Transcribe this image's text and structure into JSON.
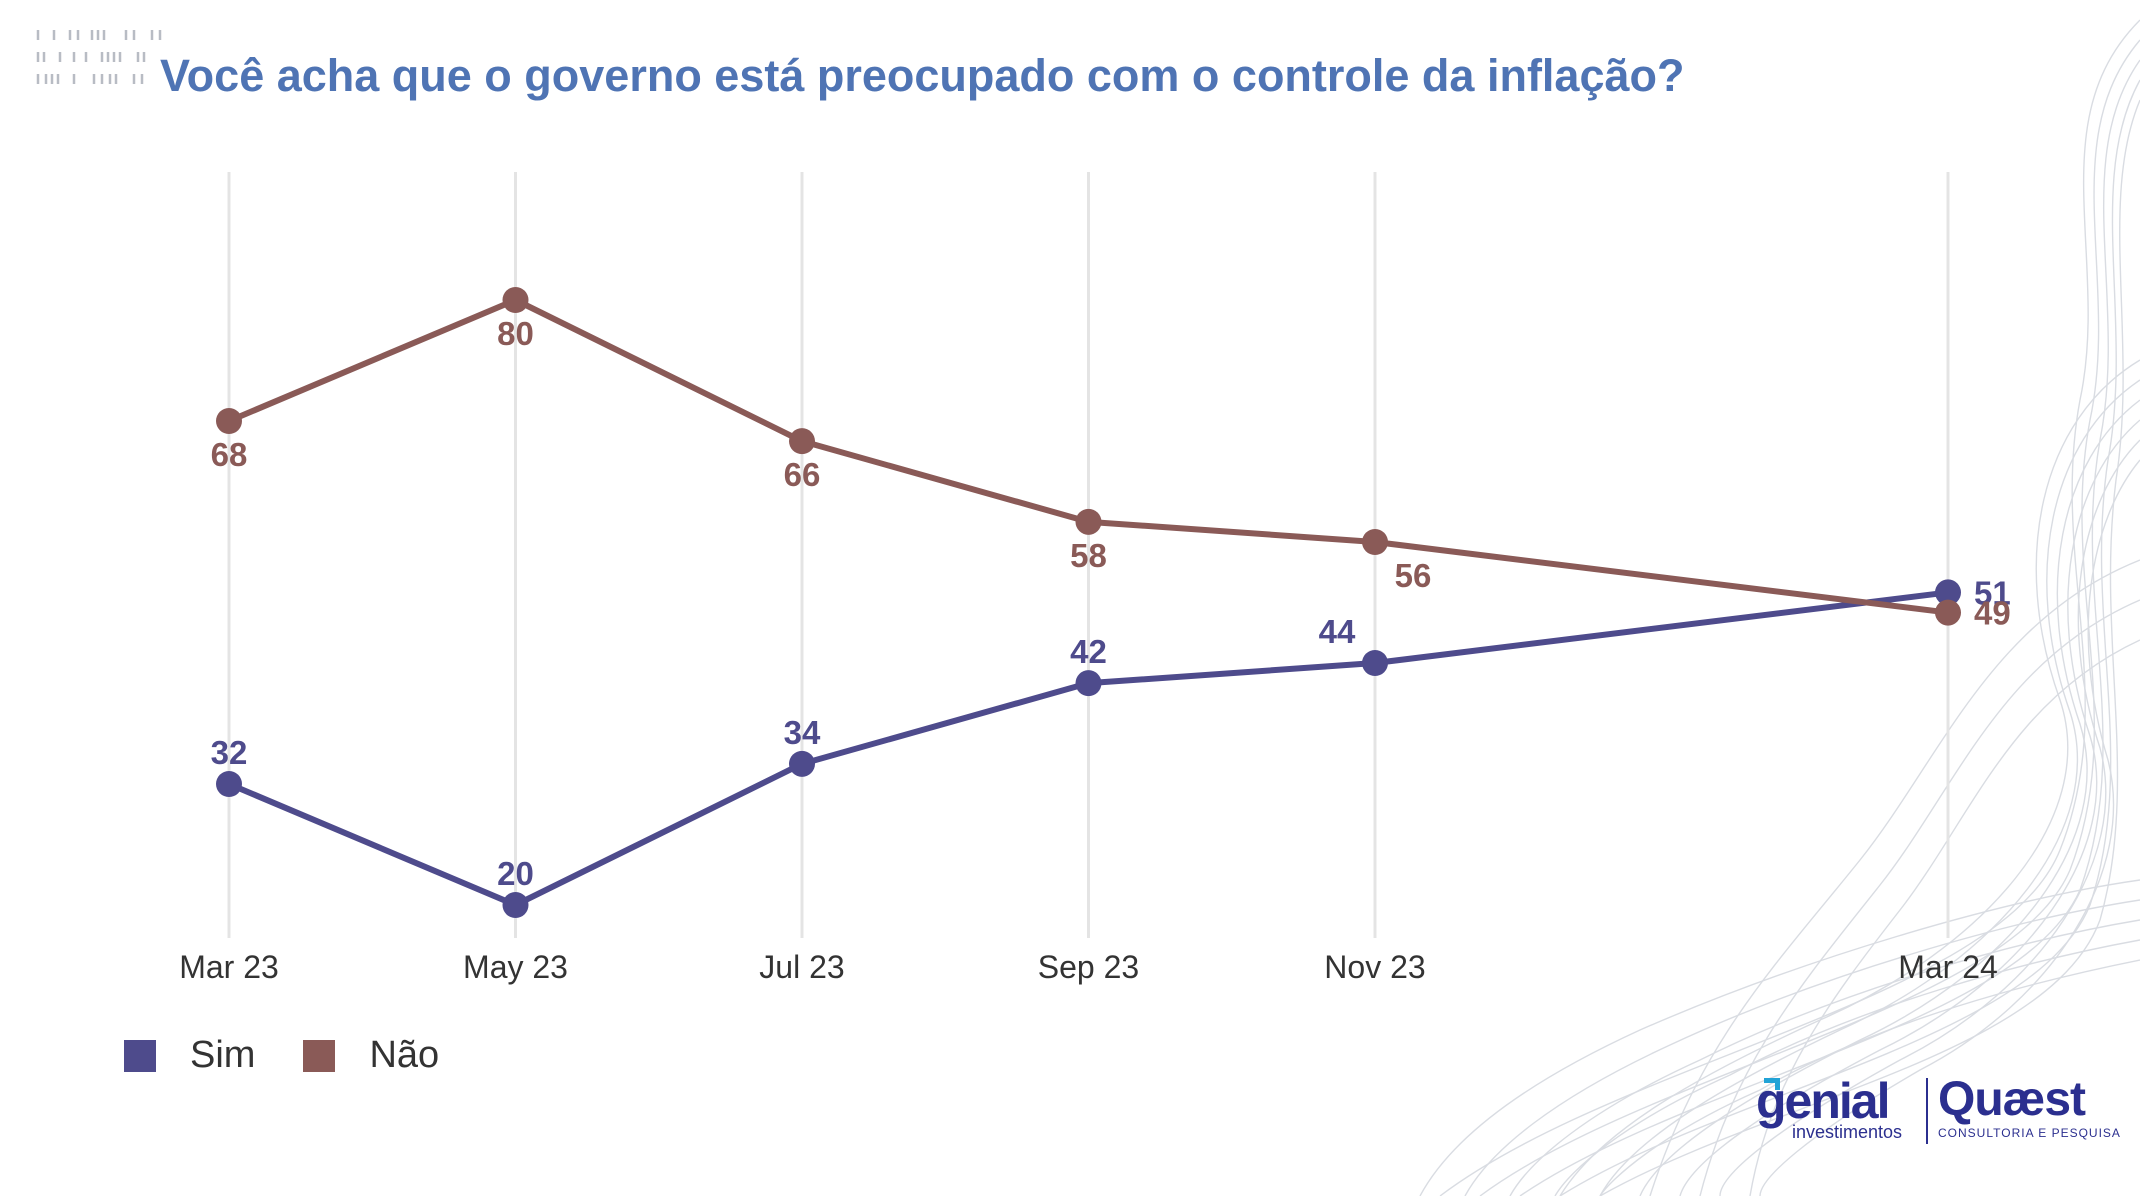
{
  "title": "Você acha que o governo está preocupado com o controle da inflação?",
  "colors": {
    "title": "#4f74b4",
    "sim": "#4e4b8c",
    "nao": "#8a5a57",
    "gridline": "#e4e4e4",
    "brand": "#2b2f8f",
    "brand_accent": "#22a3d6"
  },
  "chart_data": {
    "type": "line",
    "title": "Você acha que o governo está preocupado com o controle da inflação?",
    "xlabel": "",
    "ylabel": "",
    "grid": "vertical",
    "legend_position": "bottom-left",
    "categories": [
      "Mar 23",
      "May 23",
      "Jul 23",
      "Sep 23",
      "Nov 23",
      "Mar 24"
    ],
    "x_month_index": [
      0,
      2,
      4,
      6,
      8,
      12
    ],
    "ylim": [
      15,
      85
    ],
    "series": [
      {
        "name": "Sim",
        "color": "#4e4b8c",
        "values": [
          32,
          20,
          34,
          42,
          44,
          51
        ],
        "label_position": [
          "above",
          "above",
          "above",
          "above",
          "above-left",
          "right"
        ]
      },
      {
        "name": "Não",
        "color": "#8a5a57",
        "values": [
          68,
          80,
          66,
          58,
          56,
          49
        ],
        "label_position": [
          "below",
          "below",
          "below",
          "below",
          "below-right",
          "right"
        ]
      }
    ]
  },
  "legend": {
    "items": [
      {
        "label": "Sim",
        "color": "#4e4b8c"
      },
      {
        "label": "Não",
        "color": "#8a5a57"
      }
    ]
  },
  "logos": {
    "genial_name": "genial",
    "genial_sub": "investimentos",
    "quaest_name": "Quæst",
    "quaest_sub": "CONSULTORIA E PESQUISA"
  }
}
